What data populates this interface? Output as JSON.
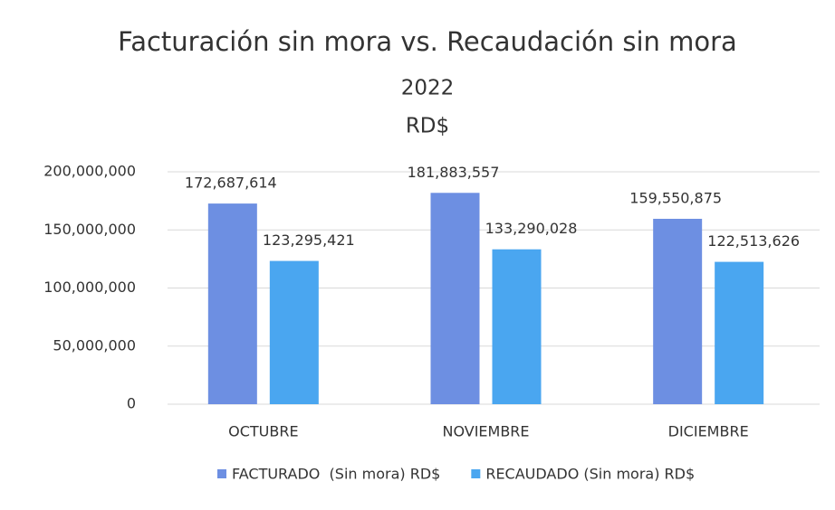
{
  "chart_data": {
    "type": "bar",
    "title": "Facturación sin mora vs. Recaudación sin mora",
    "subtitle": [
      "2022",
      "RD$"
    ],
    "categories": [
      "OCTUBRE",
      "NOVIEMBRE",
      "DICIEMBRE"
    ],
    "series": [
      {
        "name": "FACTURADO  (Sin mora) RD$",
        "color": "#6d8fe2",
        "values": [
          172687614,
          181883557,
          159550875
        ],
        "value_labels": [
          "172,687,614",
          "181,883,557",
          "159,550,875"
        ]
      },
      {
        "name": "RECAUDADO (Sin mora) RD$",
        "color": "#4aa6f0",
        "values": [
          123295421,
          133290028,
          122513626
        ],
        "value_labels": [
          "123,295,421",
          "133,290,028",
          "122,513,626"
        ]
      }
    ],
    "ylim": [
      0,
      200000000
    ],
    "yticks": [
      0,
      {
        "value": 50000000,
        "label": "50,000,000"
      },
      {
        "value": 100000000,
        "label": "100,000,000"
      },
      {
        "value": 150000000,
        "label": "150,000,000"
      },
      {
        "value": 200000000,
        "label": "200,000,000"
      }
    ],
    "grid": true,
    "legend": "bottom"
  }
}
